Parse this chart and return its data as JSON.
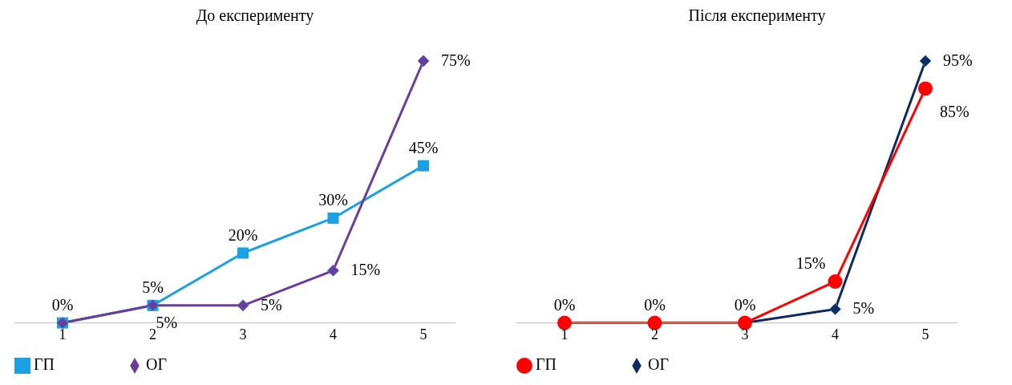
{
  "chart_data": [
    {
      "type": "line",
      "title": "До експерименту",
      "categories": [
        "1",
        "2",
        "3",
        "4",
        "5"
      ],
      "legend": "bottom left",
      "series": [
        {
          "name": "ГП",
          "color": "#1ba1e2",
          "marker": "square",
          "values": [
            0,
            5,
            20,
            30,
            45
          ],
          "value_labels": [
            "0%",
            "5%",
            "20%",
            "30%",
            "45%"
          ]
        },
        {
          "name": "ОГ",
          "color": "#6a3d9a",
          "marker": "diamond",
          "values": [
            0,
            5,
            5,
            15,
            75
          ],
          "value_labels": [
            null,
            "5%",
            "5%",
            "15%",
            "75%"
          ]
        }
      ]
    },
    {
      "type": "line",
      "title": "Після експерименту",
      "categories": [
        "1",
        "2",
        "3",
        "4",
        "5"
      ],
      "legend": "bottom left",
      "series": [
        {
          "name": "ОГ",
          "color": "#0f2a5c",
          "marker": "diamond",
          "values": [
            0,
            0,
            0,
            5,
            95
          ],
          "value_labels": [
            null,
            null,
            null,
            "5%",
            "95%"
          ]
        },
        {
          "name": "ГП",
          "color": "#ff0000",
          "marker": "circle",
          "values": [
            0,
            0,
            0,
            15,
            85
          ],
          "value_labels": [
            "0%",
            "0%",
            "0%",
            "15%",
            "85%"
          ]
        }
      ]
    }
  ]
}
